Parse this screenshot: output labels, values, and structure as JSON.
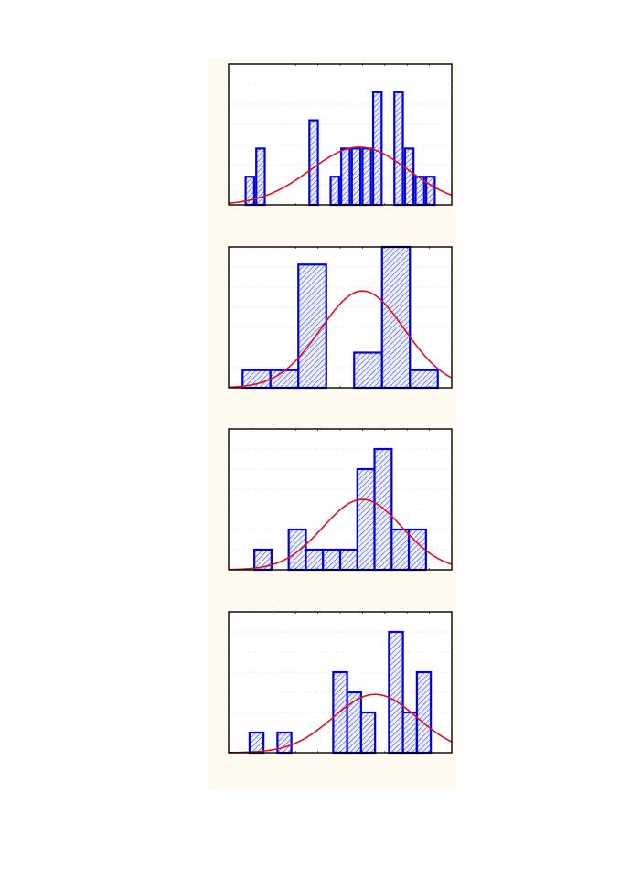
{
  "colors": {
    "panel_background": "#fffaf0",
    "plot_background": "#ffffff",
    "bar_stroke": "#0000e0",
    "bar_hatch": "#3d4fc8",
    "bar_fill": "#eef0ff",
    "curve": "#e01020",
    "frame": "#000000",
    "grid": "#c8c8c8"
  },
  "chart_data": [
    {
      "type": "bar",
      "title": "",
      "xlabel": "",
      "ylabel": "",
      "grid": true,
      "legend": "none",
      "overlay": "normal-density-curve",
      "xlim": [
        0,
        21
      ],
      "ylim": [
        0,
        5
      ],
      "bins": [
        {
          "x0": 1.6,
          "x1": 2.4,
          "count": 1
        },
        {
          "x0": 2.6,
          "x1": 3.4,
          "count": 2
        },
        {
          "x0": 7.6,
          "x1": 8.4,
          "count": 3
        },
        {
          "x0": 9.6,
          "x1": 10.4,
          "count": 1
        },
        {
          "x0": 10.6,
          "x1": 11.4,
          "count": 2
        },
        {
          "x0": 11.6,
          "x1": 12.4,
          "count": 2
        },
        {
          "x0": 12.6,
          "x1": 13.4,
          "count": 2
        },
        {
          "x0": 13.6,
          "x1": 14.4,
          "count": 4
        },
        {
          "x0": 15.6,
          "x1": 16.4,
          "count": 4
        },
        {
          "x0": 16.6,
          "x1": 17.4,
          "count": 2
        },
        {
          "x0": 17.6,
          "x1": 18.4,
          "count": 1
        },
        {
          "x0": 18.6,
          "x1": 19.4,
          "count": 1
        }
      ],
      "curve": {
        "mean": 12.3,
        "sd": 4.6,
        "peak": 2.05
      }
    },
    {
      "type": "bar",
      "title": "",
      "xlabel": "",
      "ylabel": "",
      "grid": true,
      "legend": "none",
      "overlay": "normal-density-curve",
      "xlim": [
        0,
        8
      ],
      "ylim": [
        0,
        8
      ],
      "bins": [
        {
          "x0": 0.5,
          "x1": 1.5,
          "count": 1
        },
        {
          "x0": 1.5,
          "x1": 2.5,
          "count": 1
        },
        {
          "x0": 2.5,
          "x1": 3.5,
          "count": 7
        },
        {
          "x0": 4.5,
          "x1": 5.5,
          "count": 2
        },
        {
          "x0": 5.5,
          "x1": 6.5,
          "count": 8
        },
        {
          "x0": 6.5,
          "x1": 7.5,
          "count": 1
        }
      ],
      "curve": {
        "mean": 4.8,
        "sd": 1.5,
        "peak": 5.5
      }
    },
    {
      "type": "bar",
      "title": "",
      "xlabel": "",
      "ylabel": "",
      "grid": true,
      "legend": "none",
      "overlay": "normal-density-curve",
      "xlim": [
        0,
        13
      ],
      "ylim": [
        0,
        7
      ],
      "bins": [
        {
          "x0": 1.5,
          "x1": 2.5,
          "count": 1
        },
        {
          "x0": 3.5,
          "x1": 4.5,
          "count": 2
        },
        {
          "x0": 4.5,
          "x1": 5.5,
          "count": 1
        },
        {
          "x0": 5.5,
          "x1": 6.5,
          "count": 1
        },
        {
          "x0": 6.5,
          "x1": 7.5,
          "count": 1
        },
        {
          "x0": 7.5,
          "x1": 8.5,
          "count": 5
        },
        {
          "x0": 8.5,
          "x1": 9.5,
          "count": 6
        },
        {
          "x0": 9.5,
          "x1": 10.5,
          "count": 2
        },
        {
          "x0": 10.5,
          "x1": 11.5,
          "count": 2
        }
      ],
      "curve": {
        "mean": 7.8,
        "sd": 2.3,
        "peak": 3.5
      }
    },
    {
      "type": "bar",
      "title": "",
      "xlabel": "",
      "ylabel": "",
      "grid": true,
      "legend": "none",
      "overlay": "normal-density-curve",
      "xlim": [
        0,
        16
      ],
      "ylim": [
        0,
        7
      ],
      "bins": [
        {
          "x0": 1.5,
          "x1": 2.5,
          "count": 1
        },
        {
          "x0": 3.5,
          "x1": 4.5,
          "count": 1
        },
        {
          "x0": 7.5,
          "x1": 8.5,
          "count": 4
        },
        {
          "x0": 8.5,
          "x1": 9.5,
          "count": 3
        },
        {
          "x0": 9.5,
          "x1": 10.5,
          "count": 2
        },
        {
          "x0": 11.5,
          "x1": 12.5,
          "count": 6
        },
        {
          "x0": 12.5,
          "x1": 13.5,
          "count": 2
        },
        {
          "x0": 13.5,
          "x1": 14.5,
          "count": 4
        }
      ],
      "curve": {
        "mean": 10.5,
        "sd": 3.0,
        "peak": 2.9
      }
    }
  ]
}
